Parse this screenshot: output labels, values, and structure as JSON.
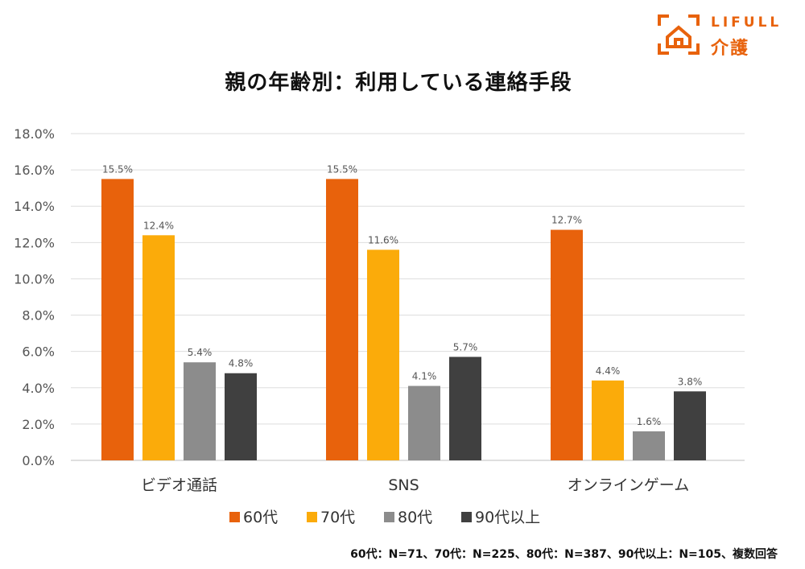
{
  "logo": {
    "brand": "LIFULL",
    "service": "介護",
    "icon": "house-bracket-icon",
    "color": "#e8620c"
  },
  "chart_data": {
    "type": "bar",
    "title": "親の年齢別：利用している連絡手段",
    "categories": [
      "ビデオ通話",
      "SNS",
      "オンラインゲーム"
    ],
    "series": [
      {
        "name": "60代",
        "color": "#e8620c",
        "values": [
          15.5,
          15.5,
          12.7
        ],
        "labels": [
          "15.5%",
          "15.5%",
          "12.7%"
        ]
      },
      {
        "name": "70代",
        "color": "#fbab0a",
        "values": [
          12.4,
          11.6,
          4.4
        ],
        "labels": [
          "12.4%",
          "11.6%",
          "4.4%"
        ]
      },
      {
        "name": "80代",
        "color": "#8c8c8c",
        "values": [
          5.4,
          4.1,
          1.6
        ],
        "labels": [
          "5.4%",
          "4.1%",
          "1.6%"
        ]
      },
      {
        "name": "90代以上",
        "color": "#404040",
        "values": [
          4.8,
          5.7,
          3.8
        ],
        "labels": [
          "4.8%",
          "5.7%",
          "3.8%"
        ]
      }
    ],
    "ylim": [
      0,
      18
    ],
    "yticks": [
      "0.0%",
      "2.0%",
      "4.0%",
      "6.0%",
      "8.0%",
      "10.0%",
      "12.0%",
      "14.0%",
      "16.0%",
      "18.0%"
    ],
    "grid": true,
    "legend_position": "bottom",
    "xlabel": "",
    "ylabel": ""
  },
  "footnote": "60代：N=71、70代：N=225、80代：N=387、90代以上：N=105、複数回答"
}
